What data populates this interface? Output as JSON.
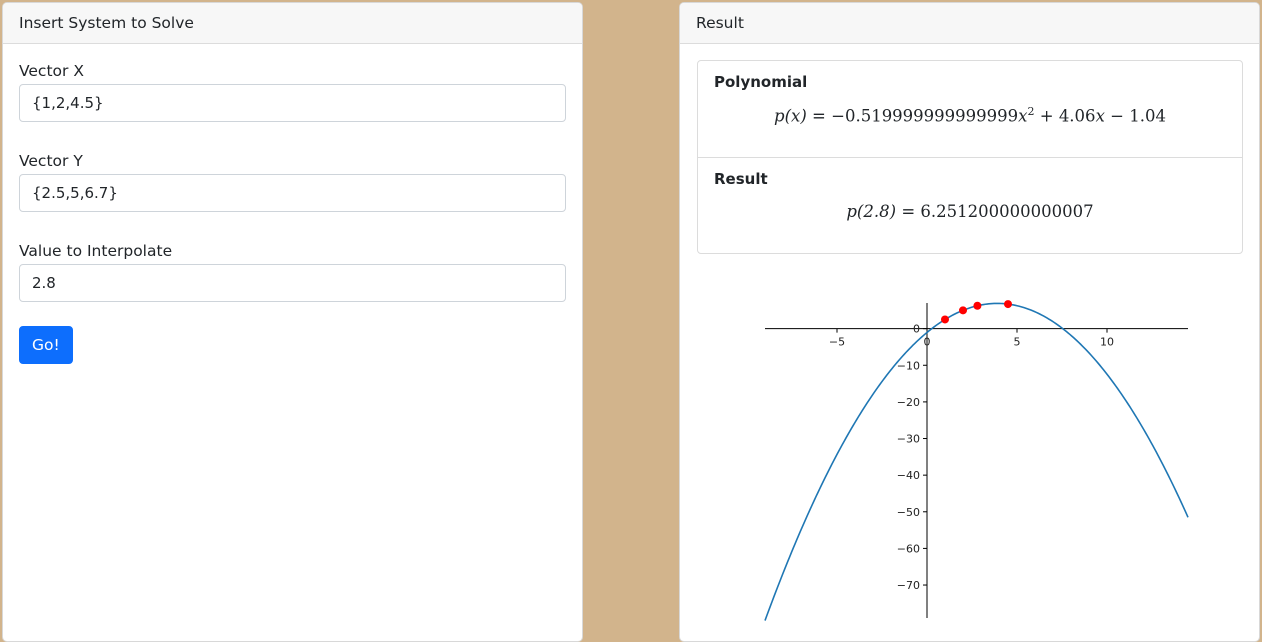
{
  "left_panel": {
    "header": "Insert System to Solve",
    "vector_x": {
      "label": "Vector X",
      "value": "{1,2,4.5}"
    },
    "vector_y": {
      "label": "Vector Y",
      "value": "{2.5,5,6.7}"
    },
    "interp": {
      "label": "Value to Interpolate",
      "value": "2.8"
    },
    "go_label": "Go!",
    "button_color": "#0d6efd"
  },
  "right_panel": {
    "header": "Result",
    "polynomial": {
      "title": "Polynomial",
      "lhs": "p(x)",
      "a": "−0.519999999999999",
      "b": "4.06",
      "c": "1.04"
    },
    "result": {
      "title": "Result",
      "lhs": "p(2.8)",
      "value": "6.251200000000007"
    }
  },
  "chart_data": {
    "type": "line",
    "series": [
      {
        "kind": "curve",
        "color": "#1f77b4",
        "coefficients": [
          -0.52,
          4.06,
          -1.04
        ],
        "x_range": [
          -9,
          14.5
        ]
      },
      {
        "kind": "points",
        "color": "#ff0000",
        "x": [
          1,
          2,
          2.8,
          4.5
        ],
        "y": [
          2.5,
          5,
          6.2512,
          6.7
        ]
      }
    ],
    "xticks": [
      -5,
      0,
      5,
      10
    ],
    "yticks": [
      0,
      -10,
      -20,
      -30,
      -40,
      -50,
      -60,
      -70
    ],
    "xlim": [
      -9,
      14.5
    ],
    "ylim": [
      -79,
      7
    ],
    "axes_through_origin": true
  }
}
